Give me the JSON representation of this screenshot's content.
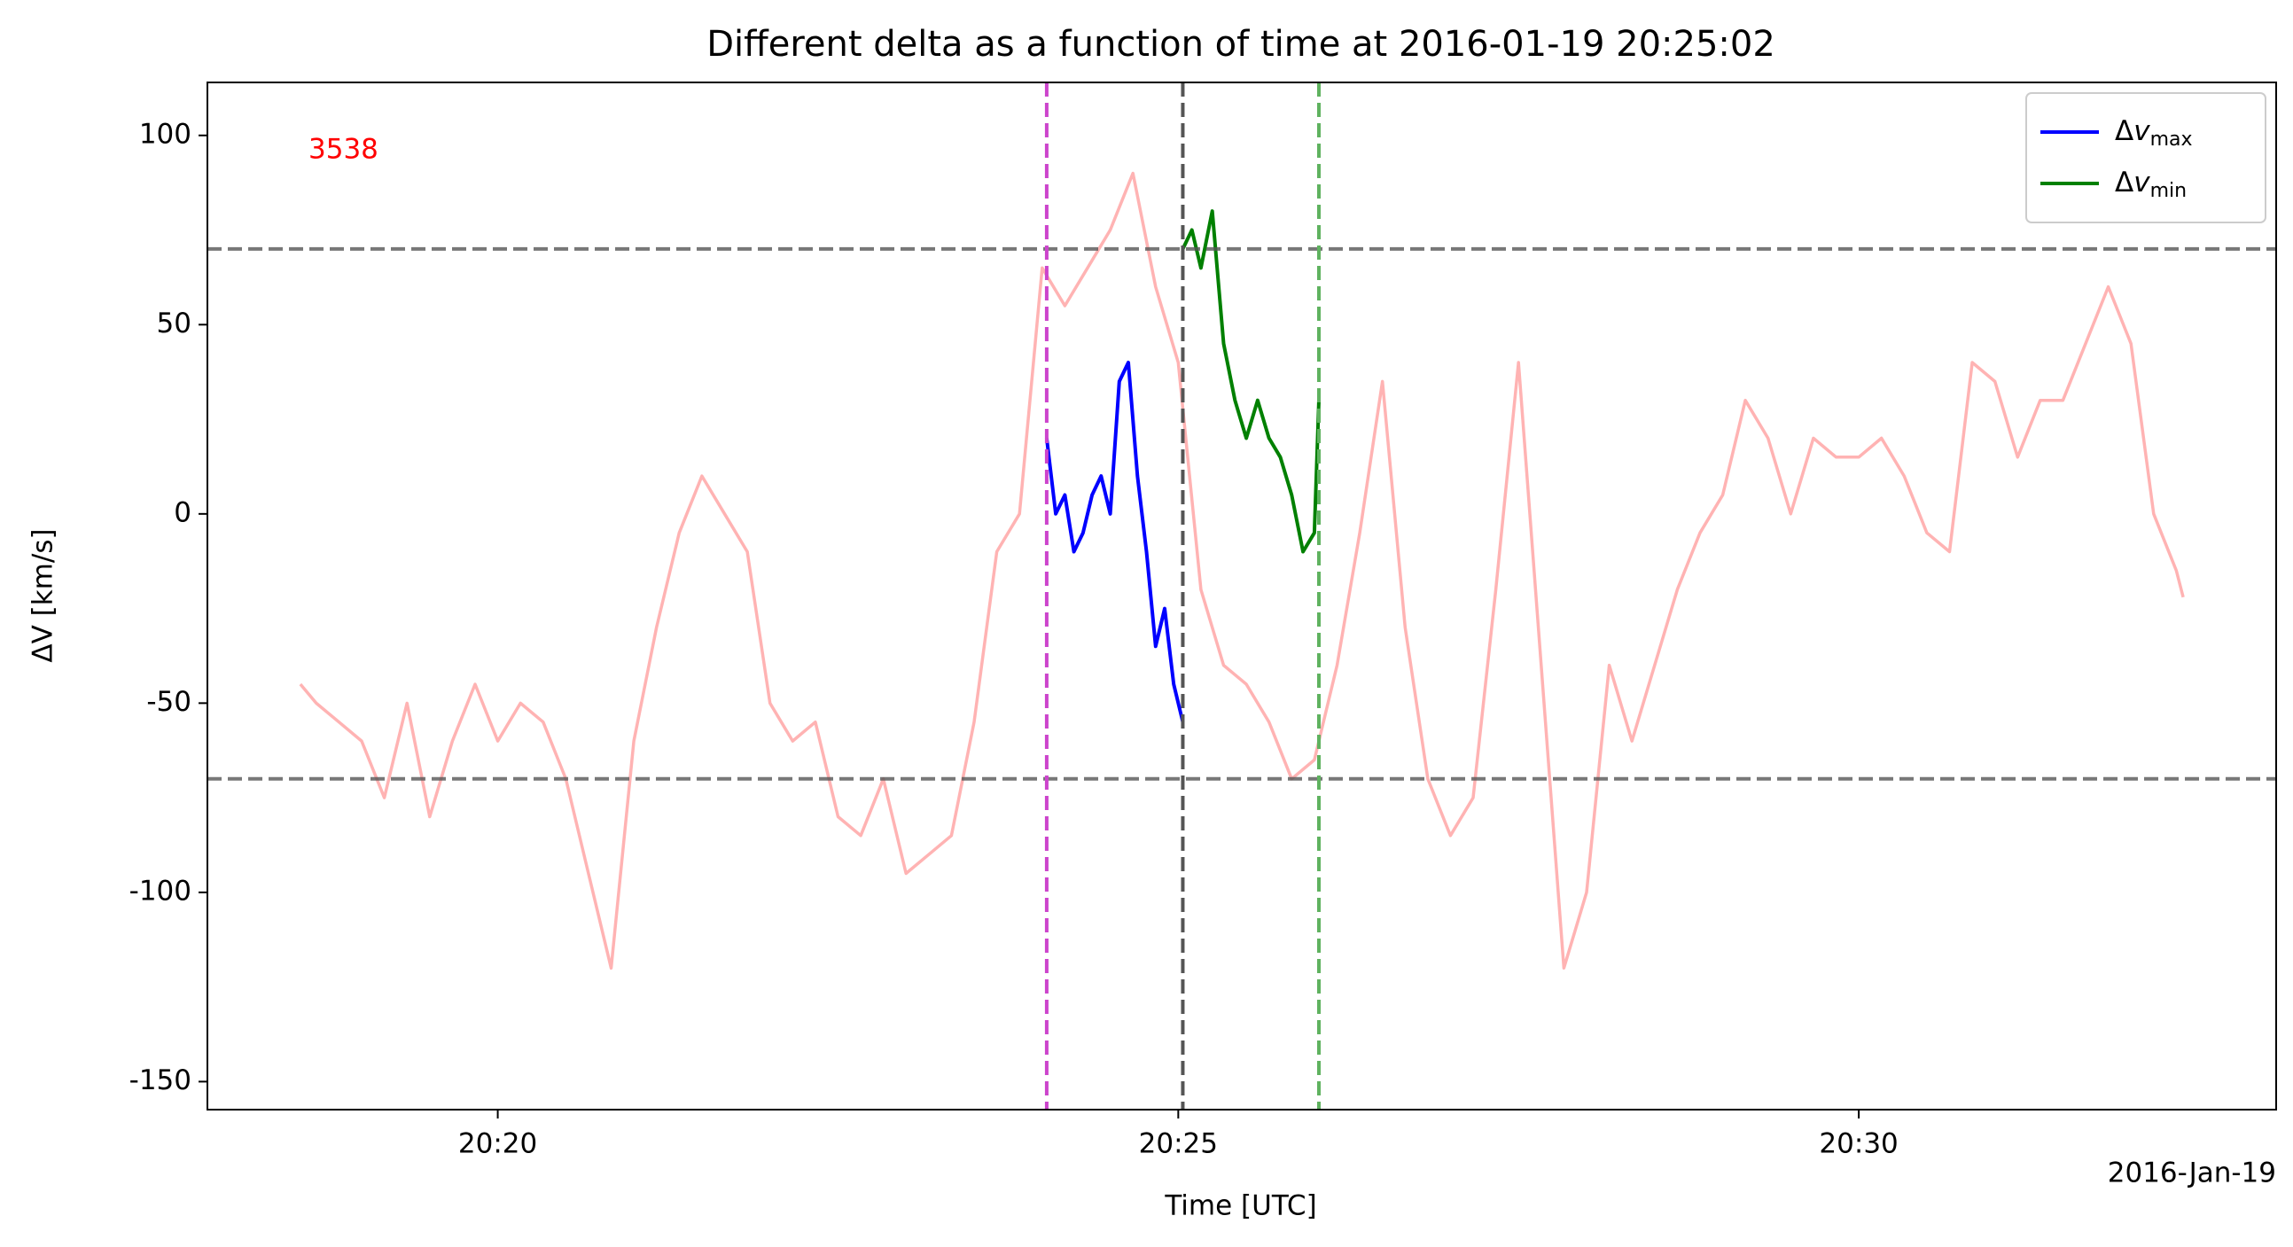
{
  "chart_data": {
    "type": "line",
    "title": "Different delta as a function of time at 2016-01-19 20:25:02",
    "x_label": "Time [UTC]",
    "y_label": "ΔV [km/s]",
    "date_label": "2016-Jan-19",
    "annotation": {
      "text": "3538",
      "color": "#ff0000"
    },
    "xlim": [
      "20:17:52",
      "20:33:04"
    ],
    "xticks": [
      "20:20",
      "20:25",
      "20:30"
    ],
    "ylim": [
      -157.4,
      114
    ],
    "yticks": [
      -150,
      -100,
      -50,
      0,
      50,
      100
    ],
    "legend": "upper right",
    "hlines": [
      70,
      -70
    ],
    "vlines": [
      {
        "x": "20:24:02",
        "color": "#cc44cc"
      },
      {
        "x": "20:25:02",
        "color": "#555555"
      },
      {
        "x": "20:26:02",
        "color": "#5fb25f"
      }
    ],
    "background": {
      "color": "#ffb3b3",
      "x": [
        "20:18:33",
        "20:18:40",
        "20:18:50",
        "20:19:00",
        "20:19:10",
        "20:19:20",
        "20:19:30",
        "20:19:40",
        "20:19:50",
        "20:20:00",
        "20:20:10",
        "20:20:20",
        "20:20:30",
        "20:20:40",
        "20:20:50",
        "20:21:00",
        "20:21:10",
        "20:21:20",
        "20:21:30",
        "20:21:40",
        "20:21:50",
        "20:22:00",
        "20:22:10",
        "20:22:20",
        "20:22:30",
        "20:22:40",
        "20:22:50",
        "20:23:00",
        "20:23:10",
        "20:23:20",
        "20:23:30",
        "20:23:40",
        "20:23:50",
        "20:24:00",
        "20:24:10",
        "20:24:20",
        "20:24:30",
        "20:24:40",
        "20:24:50",
        "20:25:00",
        "20:25:10",
        "20:25:20",
        "20:25:30",
        "20:25:40",
        "20:25:50",
        "20:26:00",
        "20:26:10",
        "20:26:20",
        "20:26:30",
        "20:26:40",
        "20:26:50",
        "20:27:00",
        "20:27:10",
        "20:27:20",
        "20:27:30",
        "20:27:40",
        "20:27:50",
        "20:28:00",
        "20:28:10",
        "20:28:20",
        "20:28:30",
        "20:28:40",
        "20:28:50",
        "20:29:00",
        "20:29:10",
        "20:29:20",
        "20:29:30",
        "20:29:40",
        "20:29:50",
        "20:30:00",
        "20:30:10",
        "20:30:20",
        "20:30:30",
        "20:30:40",
        "20:30:50",
        "20:31:00",
        "20:31:10",
        "20:31:20",
        "20:31:30",
        "20:31:40",
        "20:31:50",
        "20:32:00",
        "20:32:10",
        "20:32:20",
        "20:32:23"
      ],
      "values": [
        -45,
        -50,
        -55,
        -60,
        -75,
        -50,
        -80,
        -60,
        -45,
        -60,
        -50,
        -55,
        -70,
        -95,
        -120,
        -60,
        -30,
        -5,
        10,
        0,
        -10,
        -50,
        -60,
        -55,
        -80,
        -85,
        -70,
        -95,
        -90,
        -85,
        -55,
        -10,
        0,
        65,
        55,
        65,
        75,
        90,
        60,
        40,
        -20,
        -40,
        -45,
        -55,
        -70,
        -65,
        -40,
        -5,
        35,
        -30,
        -70,
        -85,
        -75,
        -20,
        40,
        -40,
        -120,
        -100,
        -40,
        -60,
        -40,
        -20,
        -5,
        5,
        30,
        20,
        0,
        20,
        15,
        15,
        20,
        10,
        -5,
        -10,
        40,
        35,
        15,
        30,
        30,
        45,
        60,
        45,
        0,
        -15,
        -22
      ]
    },
    "series": [
      {
        "name": "Δvmax",
        "color": "#0000ff",
        "x": [
          "20:24:02",
          "20:24:06",
          "20:24:10",
          "20:24:14",
          "20:24:18",
          "20:24:22",
          "20:24:26",
          "20:24:30",
          "20:24:34",
          "20:24:38",
          "20:24:42",
          "20:24:46",
          "20:24:50",
          "20:24:54",
          "20:24:58",
          "20:25:02"
        ],
        "values": [
          20,
          0,
          5,
          -10,
          -5,
          5,
          10,
          0,
          35,
          40,
          10,
          -10,
          -35,
          -25,
          -45,
          -55
        ]
      },
      {
        "name": "Δvmin",
        "color": "#008000",
        "x": [
          "20:25:02",
          "20:25:06",
          "20:25:10",
          "20:25:15",
          "20:25:20",
          "20:25:25",
          "20:25:30",
          "20:25:35",
          "20:25:40",
          "20:25:45",
          "20:25:50",
          "20:25:55",
          "20:26:00",
          "20:26:02"
        ],
        "values": [
          70,
          75,
          65,
          80,
          45,
          30,
          20,
          30,
          20,
          15,
          5,
          -10,
          -5,
          30
        ]
      }
    ]
  }
}
